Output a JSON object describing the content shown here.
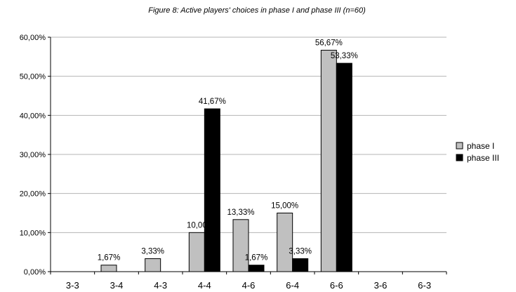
{
  "chart_data": {
    "type": "bar",
    "title": "Figure 8: Active players' choices in phase I and phase III (n=60)",
    "categories": [
      "3-3",
      "3-4",
      "4-3",
      "4-4",
      "4-6",
      "6-4",
      "6-6",
      "3-6",
      "6-3"
    ],
    "series": [
      {
        "name": "phase I",
        "color": "#c0c0c0",
        "values": [
          0,
          1.67,
          3.33,
          10.0,
          13.33,
          15.0,
          56.67,
          0,
          0
        ],
        "labels": [
          "",
          "1,67%",
          "3,33%",
          "10,00",
          "13,33%",
          "15,00%",
          "56,67%",
          "",
          ""
        ]
      },
      {
        "name": "phase III",
        "color": "#000000",
        "values": [
          0,
          0,
          0,
          41.67,
          1.67,
          3.33,
          53.33,
          0,
          0
        ],
        "labels": [
          "",
          "",
          "",
          "41,67%",
          "1,67%",
          "3,33%",
          "53,33%",
          "",
          ""
        ]
      }
    ],
    "ylim": [
      0,
      60
    ],
    "yticks": [
      "0,00%",
      "10,00%",
      "20,00%",
      "30,00%",
      "40,00%",
      "50,00%",
      "60,00%"
    ],
    "grid": true,
    "legend_position": "right"
  }
}
